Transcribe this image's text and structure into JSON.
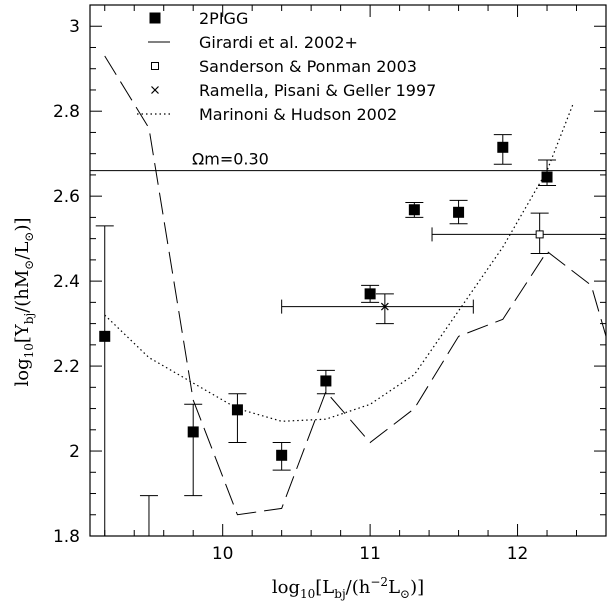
{
  "chart_data": {
    "type": "scatter",
    "xlabel": "log10[Lbj/(h^-2 Lsun)]",
    "ylabel": "log10[Υbj/(h Msun/Lsun)]",
    "xlim": [
      9.1,
      12.6
    ],
    "ylim": [
      1.8,
      3.05
    ],
    "x_ticks": [
      10,
      11,
      12
    ],
    "x_tick_labels": [
      "10",
      "11",
      "12"
    ],
    "y_ticks": [
      1.8,
      2,
      2.2,
      2.4,
      2.6,
      2.8,
      3
    ],
    "y_tick_labels": [
      "1.8",
      "2",
      "2.2",
      "2.4",
      "2.6",
      "2.8",
      "3"
    ],
    "legend": {
      "position": "top-left"
    },
    "series": [
      {
        "name": "2PIGG",
        "style": "filled-square",
        "points": [
          {
            "x": 9.2,
            "y": 2.27,
            "ylo": 1.8,
            "yhi": 2.53
          },
          {
            "x": 9.8,
            "y": 2.045,
            "ylo": 1.895,
            "yhi": 2.11
          },
          {
            "x": 10.1,
            "y": 2.097,
            "ylo": 2.02,
            "yhi": 2.135
          },
          {
            "x": 10.4,
            "y": 1.99,
            "ylo": 1.955,
            "yhi": 2.02
          },
          {
            "x": 10.7,
            "y": 2.165,
            "ylo": 2.135,
            "yhi": 2.19
          },
          {
            "x": 11.0,
            "y": 2.37,
            "ylo": 2.35,
            "yhi": 2.39
          },
          {
            "x": 11.3,
            "y": 2.568,
            "ylo": 2.55,
            "yhi": 2.585
          },
          {
            "x": 11.6,
            "y": 2.562,
            "ylo": 2.535,
            "yhi": 2.59
          },
          {
            "x": 11.9,
            "y": 2.715,
            "ylo": 2.675,
            "yhi": 2.745
          },
          {
            "x": 12.2,
            "y": 2.645,
            "ylo": 2.625,
            "yhi": 2.685
          }
        ],
        "extra_upper_limit": {
          "x": 9.5,
          "ylo": 1.8,
          "yhi": 1.895
        }
      },
      {
        "name": "Girardi et al. 2002+",
        "style": "long-dash",
        "x": [
          9.2,
          9.5,
          9.8,
          10.1,
          10.4,
          10.7,
          11.0,
          11.3,
          11.6,
          11.9,
          12.2,
          12.5,
          12.6
        ],
        "y": [
          2.93,
          2.76,
          2.12,
          1.85,
          1.865,
          2.14,
          2.02,
          2.1,
          2.27,
          2.31,
          2.47,
          2.39,
          2.27
        ]
      },
      {
        "name": "Sanderson & Ponman 2003",
        "style": "open-square",
        "points": [
          {
            "x": 12.15,
            "y": 2.51,
            "ylo": 2.465,
            "yhi": 2.56,
            "xlo": 11.42,
            "xhi": 12.6
          }
        ]
      },
      {
        "name": "Ramella, Pisani & Geller 1997",
        "style": "cross",
        "points": [
          {
            "x": 11.1,
            "y": 2.34,
            "ylo": 2.3,
            "yhi": 2.37,
            "xlo": 10.4,
            "xhi": 11.7
          }
        ]
      },
      {
        "name": "Marinoni & Hudson 2002",
        "style": "dotted",
        "x": [
          9.2,
          9.5,
          9.8,
          10.1,
          10.4,
          10.7,
          11.0,
          11.3,
          11.6,
          11.9,
          12.2,
          12.38
        ],
        "y": [
          2.32,
          2.22,
          2.16,
          2.1,
          2.07,
          2.075,
          2.11,
          2.18,
          2.33,
          2.48,
          2.66,
          2.82
        ]
      }
    ],
    "hline": {
      "y": 2.66,
      "label": "Ωm=0.30"
    }
  }
}
